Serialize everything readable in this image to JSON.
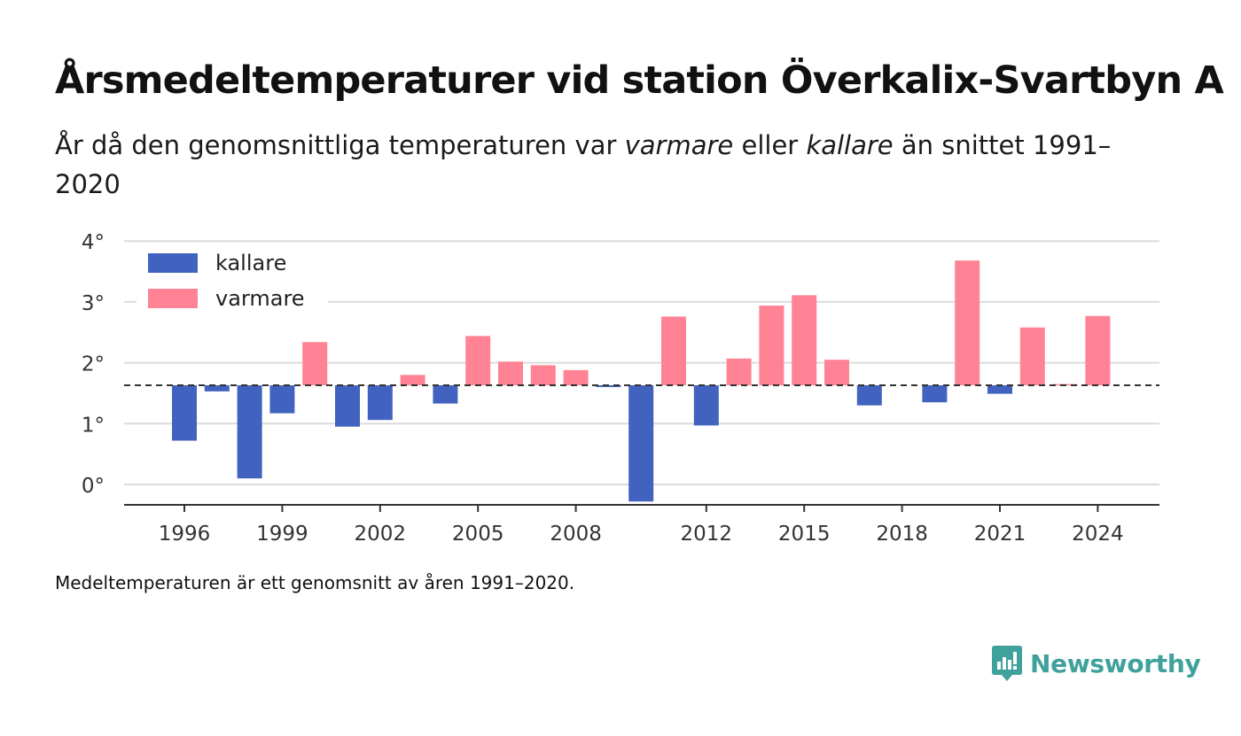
{
  "title": "Årsmedeltemperaturer vid station Överkalix-Svartbyn A",
  "subtitle": {
    "part1": "År då den genomsnittliga temperaturen var ",
    "warm_word": "varmare",
    "part2": " eller ",
    "cold_word": "kallare",
    "part3": " än snittet 1991–2020"
  },
  "footnote": "Medeltemperaturen är ett genomsnitt av åren 1991–2020.",
  "brand": "Newsworthy",
  "colors": {
    "cold": "#4163bf",
    "warm": "#ff8395",
    "grid": "#dcdcdc",
    "axis": "#333333",
    "brand": "#3fa19b"
  },
  "chart_data": {
    "type": "bar",
    "baseline": 1.63,
    "ylim": [
      -0.35,
      4.2
    ],
    "yticks": [
      {
        "value": 0,
        "label": "0°"
      },
      {
        "value": 1,
        "label": "1°"
      },
      {
        "value": 2,
        "label": "2°"
      },
      {
        "value": 3,
        "label": "3°"
      },
      {
        "value": 4,
        "label": "4°"
      }
    ],
    "xticks": [
      {
        "value": 1996,
        "label": "1996"
      },
      {
        "value": 1999,
        "label": "1999"
      },
      {
        "value": 2002,
        "label": "2002"
      },
      {
        "value": 2005,
        "label": "2005"
      },
      {
        "value": 2008,
        "label": "2008"
      },
      {
        "value": 2012,
        "label": "2012"
      },
      {
        "value": 2015,
        "label": "2015"
      },
      {
        "value": 2018,
        "label": "2018"
      },
      {
        "value": 2021,
        "label": "2021"
      },
      {
        "value": 2024,
        "label": "2024"
      }
    ],
    "legend": {
      "position": "top-left",
      "entries": [
        {
          "key": "kallare",
          "label": "kallare"
        },
        {
          "key": "varmare",
          "label": "varmare"
        }
      ]
    },
    "x": [
      1996,
      1997,
      1998,
      1999,
      2000,
      2001,
      2002,
      2003,
      2004,
      2005,
      2006,
      2007,
      2008,
      2009,
      2010,
      2011,
      2012,
      2013,
      2014,
      2015,
      2016,
      2017,
      2018,
      2019,
      2020,
      2021,
      2022,
      2023,
      2024
    ],
    "values": [
      0.72,
      1.53,
      0.1,
      1.17,
      2.34,
      0.95,
      1.06,
      1.8,
      1.33,
      2.44,
      2.02,
      1.96,
      1.88,
      1.6,
      -0.28,
      2.76,
      0.97,
      2.07,
      2.94,
      3.11,
      2.05,
      1.3,
      null,
      1.35,
      3.68,
      1.49,
      2.58,
      1.65,
      2.77
    ]
  }
}
